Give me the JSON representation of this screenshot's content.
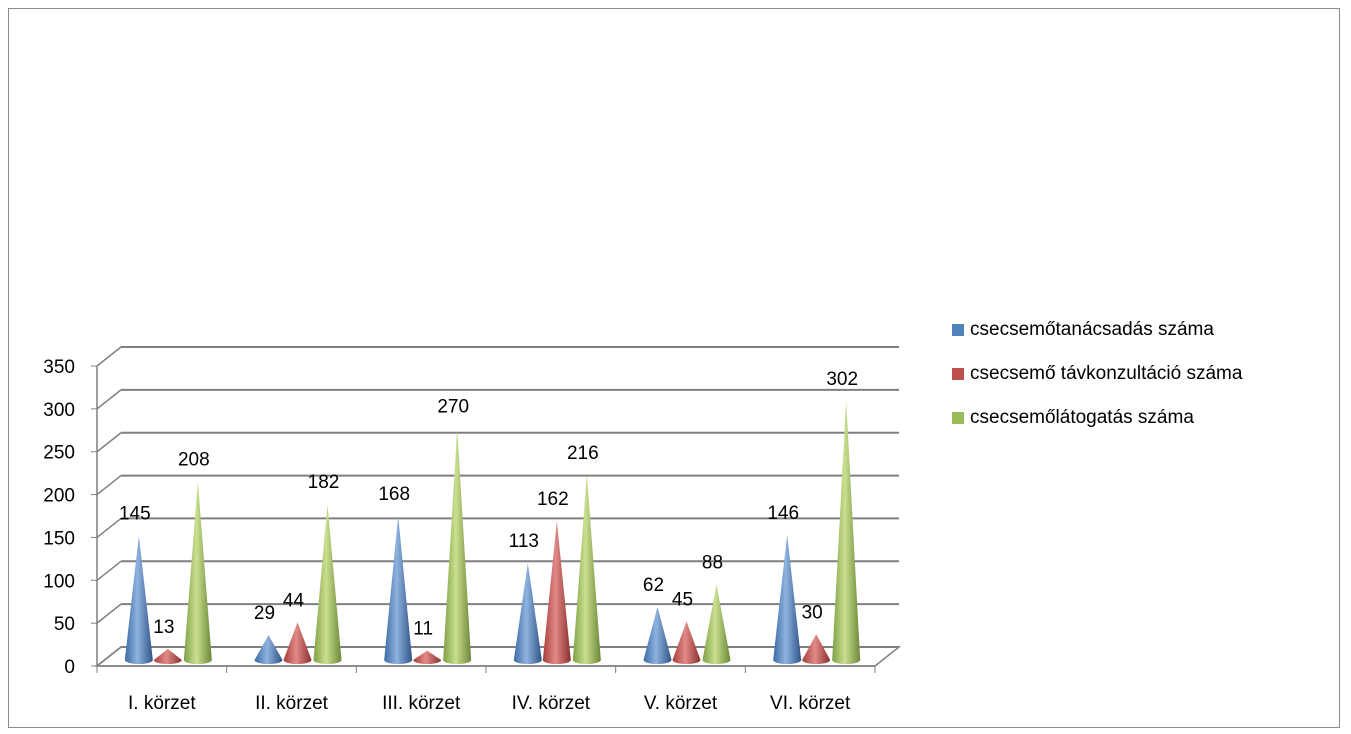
{
  "colors": {
    "series": [
      "#4F81BD",
      "#C0504D",
      "#9BBB59"
    ],
    "gridline": "#7f7f7f",
    "axis": "#7f7f7f",
    "text": "#000000",
    "frame": "#8c8c8c"
  },
  "chart_data": {
    "type": "bar",
    "shape": "cone-3d",
    "categories": [
      "I. körzet",
      "II. körzet",
      "III. körzet",
      "IV. körzet",
      "V. körzet",
      "VI. körzet"
    ],
    "series": [
      {
        "name": "csecsemőtanácsadás száma",
        "values": [
          145,
          29,
          168,
          113,
          62,
          146
        ]
      },
      {
        "name": "csecsemő távkonzultáció száma",
        "values": [
          13,
          44,
          11,
          162,
          45,
          30
        ]
      },
      {
        "name": "csecsemőlátogatás száma",
        "values": [
          208,
          182,
          270,
          216,
          88,
          302
        ]
      }
    ],
    "yticks": [
      "0",
      "50",
      "100",
      "150",
      "200",
      "250",
      "300",
      "350"
    ],
    "ylim": [
      0,
      350
    ],
    "grid": true,
    "legend": "right",
    "data_labels": true,
    "title": "",
    "xlabel": "",
    "ylabel": ""
  }
}
